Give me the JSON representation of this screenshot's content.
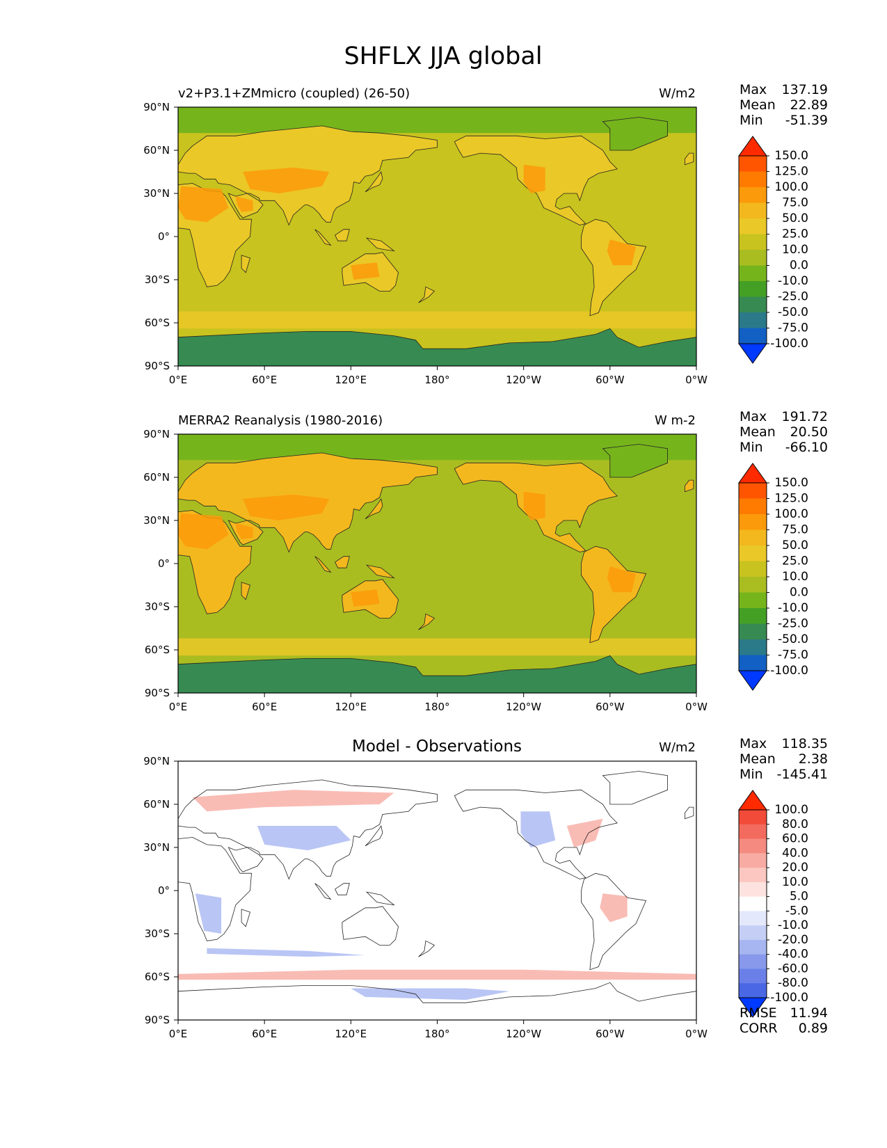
{
  "title": "SHFLX JJA global",
  "panels": [
    {
      "id": "model",
      "title_left": "v2+P3.1+ZMmicro (coupled) (26-50)",
      "title_center": "",
      "units": "W/m2",
      "stats": [
        {
          "label": "Max",
          "value": "137.19"
        },
        {
          "label": "Mean",
          "value": "22.89"
        },
        {
          "label": "Min",
          "value": "-51.39"
        }
      ],
      "colorbar": {
        "levels": [
          "150.0",
          "125.0",
          "100.0",
          "75.0",
          "50.0",
          "25.0",
          "10.0",
          "0.0",
          "-10.0",
          "-25.0",
          "-50.0",
          "-75.0",
          "-100.0"
        ],
        "colors": [
          "#ff2a00",
          "#ff5500",
          "#ff7b00",
          "#fb9a0a",
          "#f3b81e",
          "#eac827",
          "#c8c31e",
          "#a9bd21",
          "#76b41c",
          "#44a025",
          "#378a52",
          "#2b7a8a",
          "#1260c4",
          "#0039ff"
        ]
      }
    },
    {
      "id": "obs",
      "title_left": "MERRA2 Reanalysis (1980-2016)",
      "title_center": "",
      "units": "W m-2",
      "stats": [
        {
          "label": "Max",
          "value": "191.72"
        },
        {
          "label": "Mean",
          "value": "20.50"
        },
        {
          "label": "Min",
          "value": "-66.10"
        }
      ],
      "colorbar": {
        "levels": [
          "150.0",
          "125.0",
          "100.0",
          "75.0",
          "50.0",
          "25.0",
          "10.0",
          "0.0",
          "-10.0",
          "-25.0",
          "-50.0",
          "-75.0",
          "-100.0"
        ],
        "colors": [
          "#ff2a00",
          "#ff5500",
          "#ff7b00",
          "#fb9a0a",
          "#f3b81e",
          "#eac827",
          "#c8c31e",
          "#a9bd21",
          "#76b41c",
          "#44a025",
          "#378a52",
          "#2b7a8a",
          "#1260c4",
          "#0039ff"
        ]
      }
    },
    {
      "id": "diff",
      "title_left": "",
      "title_center": "Model - Observations",
      "units": "W/m2",
      "stats": [
        {
          "label": "Max",
          "value": "118.35"
        },
        {
          "label": "Mean",
          "value": "2.38"
        },
        {
          "label": "Min",
          "value": "-145.41"
        }
      ],
      "metrics": [
        {
          "label": "RMSE",
          "value": "11.94"
        },
        {
          "label": "CORR",
          "value": "0.89"
        }
      ],
      "colorbar": {
        "levels": [
          "100.0",
          "80.0",
          "60.0",
          "40.0",
          "20.0",
          "10.0",
          "5.0",
          "-5.0",
          "-10.0",
          "-20.0",
          "-40.0",
          "-60.0",
          "-80.0",
          "-100.0"
        ],
        "colors": [
          "#ff2a00",
          "#f24b39",
          "#f36a5e",
          "#f58b80",
          "#f8aba2",
          "#fbc7c0",
          "#fde3df",
          "#ffffff",
          "#e3e8fb",
          "#c5cff6",
          "#a7b6f1",
          "#8899ec",
          "#6a80e8",
          "#4a67e4",
          "#0039ff"
        ]
      }
    }
  ],
  "axes": {
    "lat_ticks": [
      "90°N",
      "60°N",
      "30°N",
      "0°",
      "30°S",
      "60°S",
      "90°S"
    ],
    "lon_ticks": [
      "0°E",
      "60°E",
      "120°E",
      "180°",
      "120°W",
      "60°W",
      "0°W"
    ]
  },
  "map_colors": {
    "ocean_model": "#c8c31e",
    "ocean_obs": "#a9bd21",
    "land_model": "#eac827",
    "land_obs": "#f3b81e",
    "land_hot": "#fb9a0a",
    "arctic": "#76b41c",
    "antarctic": "#378a52",
    "diff_bg": "#ffffff",
    "diff_pos": "#f8aba2",
    "diff_neg": "#a7b6f1"
  }
}
